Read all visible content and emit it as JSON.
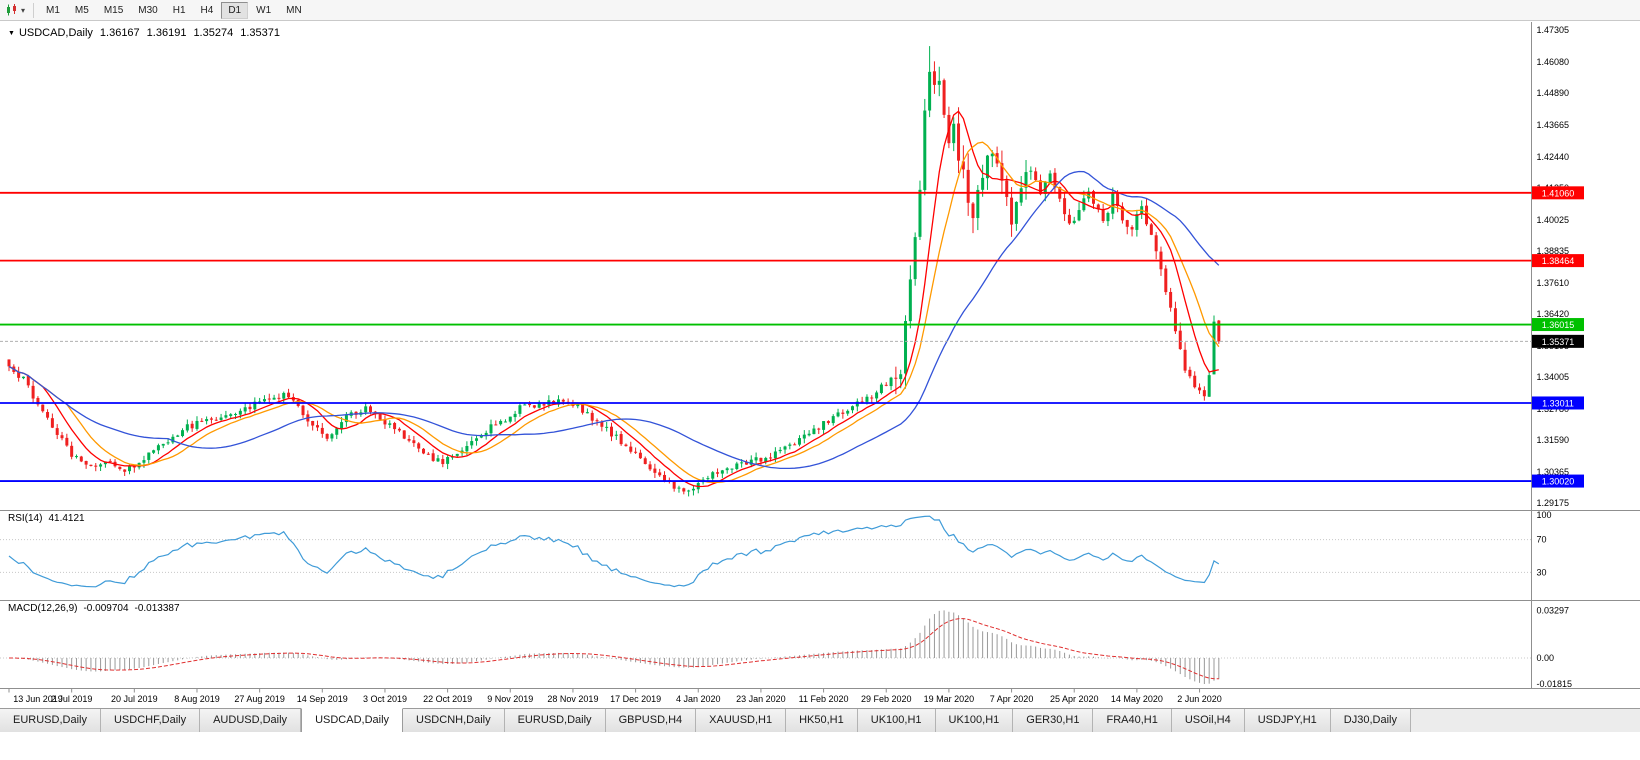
{
  "icons": {
    "title_marker": "▼",
    "toolbar_caret": "▾"
  },
  "toolbar": {
    "timeframes": [
      {
        "label": "M1",
        "active": false
      },
      {
        "label": "M5",
        "active": false
      },
      {
        "label": "M15",
        "active": false
      },
      {
        "label": "M30",
        "active": false
      },
      {
        "label": "H1",
        "active": false
      },
      {
        "label": "H4",
        "active": false
      },
      {
        "label": "D1",
        "active": true
      },
      {
        "label": "W1",
        "active": false
      },
      {
        "label": "MN",
        "active": false
      }
    ]
  },
  "chart_header": {
    "symbol": "USDCAD,Daily",
    "open": "1.36167",
    "high": "1.36191",
    "low": "1.35274",
    "close": "1.35371"
  },
  "price_axis": [
    "1.47305",
    "1.46080",
    "1.44890",
    "1.43665",
    "1.42440",
    "1.41250",
    "1.40025",
    "1.38835",
    "1.37610",
    "1.36420",
    "1.35195",
    "1.34005",
    "1.32780",
    "1.31590",
    "1.30365",
    "1.29175"
  ],
  "chart_data": {
    "type": "candlestick",
    "symbol": "USDCAD",
    "timeframe": "Daily",
    "candle_count": 252,
    "last_candle": {
      "open": 1.36167,
      "high": 1.36191,
      "low": 1.35274,
      "close": 1.35371
    },
    "peak": {
      "index": 191,
      "high": 1.4668
    },
    "trough": {
      "index": 141,
      "low": 1.2949
    },
    "candle_colors": {
      "up": "#00b050",
      "down": "#ef2020"
    },
    "moving_averages": [
      {
        "period": 8,
        "color": "#ff0000"
      },
      {
        "period": 13,
        "color": "#ff9900"
      },
      {
        "period": 34,
        "color": "#3353d8"
      }
    ],
    "horizontal_lines": [
      {
        "price": 1.4106,
        "label": "1.41060",
        "color": "#ff0000"
      },
      {
        "price": 1.38464,
        "label": "1.38464",
        "color": "#ff0000"
      },
      {
        "price": 1.36015,
        "label": "1.36015",
        "color": "#00c000"
      },
      {
        "price": 1.33011,
        "label": "1.33011",
        "color": "#0000ff"
      },
      {
        "price": 1.3002,
        "label": "1.30020",
        "color": "#0000ff"
      }
    ],
    "current_price": {
      "price": 1.35371,
      "label": "1.35371",
      "color": "#000000"
    },
    "price_anchors": [
      [
        0,
        1.343
      ],
      [
        3,
        1.339
      ],
      [
        6,
        1.33
      ],
      [
        9,
        1.3215
      ],
      [
        13,
        1.3105
      ],
      [
        17,
        1.306
      ],
      [
        21,
        1.3075
      ],
      [
        24,
        1.304
      ],
      [
        28,
        1.309
      ],
      [
        32,
        1.315
      ],
      [
        36,
        1.32
      ],
      [
        40,
        1.323
      ],
      [
        45,
        1.3255
      ],
      [
        50,
        1.329
      ],
      [
        54,
        1.332
      ],
      [
        58,
        1.333
      ],
      [
        62,
        1.324
      ],
      [
        66,
        1.317
      ],
      [
        70,
        1.325
      ],
      [
        74,
        1.3285
      ],
      [
        78,
        1.323
      ],
      [
        82,
        1.317
      ],
      [
        86,
        1.3105
      ],
      [
        90,
        1.307
      ],
      [
        94,
        1.313
      ],
      [
        98,
        1.3185
      ],
      [
        102,
        1.323
      ],
      [
        106,
        1.328
      ],
      [
        110,
        1.33
      ],
      [
        114,
        1.331
      ],
      [
        118,
        1.329
      ],
      [
        122,
        1.323
      ],
      [
        126,
        1.317
      ],
      [
        130,
        1.3105
      ],
      [
        134,
        1.304
      ],
      [
        138,
        1.298
      ],
      [
        141,
        1.296
      ],
      [
        144,
        1.3
      ],
      [
        148,
        1.305
      ],
      [
        152,
        1.307
      ],
      [
        156,
        1.3085
      ],
      [
        160,
        1.311
      ],
      [
        164,
        1.316
      ],
      [
        168,
        1.321
      ],
      [
        172,
        1.3255
      ],
      [
        176,
        1.33
      ],
      [
        180,
        1.334
      ],
      [
        183,
        1.34
      ],
      [
        185,
        1.345
      ],
      [
        187,
        1.375
      ],
      [
        188,
        1.395
      ],
      [
        189,
        1.415
      ],
      [
        190,
        1.44
      ],
      [
        191,
        1.46
      ],
      [
        192,
        1.448
      ],
      [
        193,
        1.455
      ],
      [
        194,
        1.442
      ],
      [
        195,
        1.43
      ],
      [
        196,
        1.436
      ],
      [
        197,
        1.425
      ],
      [
        198,
        1.416
      ],
      [
        199,
        1.408
      ],
      [
        200,
        1.402
      ],
      [
        201,
        1.41
      ],
      [
        202,
        1.417
      ],
      [
        203,
        1.423
      ],
      [
        204,
        1.428
      ],
      [
        205,
        1.422
      ],
      [
        206,
        1.415
      ],
      [
        207,
        1.408
      ],
      [
        208,
        1.402
      ],
      [
        209,
        1.409
      ],
      [
        210,
        1.416
      ],
      [
        211,
        1.422
      ],
      [
        212,
        1.418
      ],
      [
        213,
        1.412
      ],
      [
        214,
        1.408
      ],
      [
        215,
        1.413
      ],
      [
        216,
        1.418
      ],
      [
        217,
        1.414
      ],
      [
        218,
        1.409
      ],
      [
        219,
        1.404
      ],
      [
        220,
        1.4
      ],
      [
        221,
        1.399
      ],
      [
        222,
        1.404
      ],
      [
        223,
        1.409
      ],
      [
        224,
        1.412
      ],
      [
        225,
        1.408
      ],
      [
        226,
        1.403
      ],
      [
        227,
        1.399
      ],
      [
        228,
        1.404
      ],
      [
        229,
        1.409
      ],
      [
        230,
        1.406
      ],
      [
        231,
        1.402
      ],
      [
        232,
        1.3985
      ],
      [
        233,
        1.396
      ],
      [
        234,
        1.401
      ],
      [
        235,
        1.406
      ],
      [
        236,
        1.399
      ],
      [
        237,
        1.393
      ],
      [
        238,
        1.387
      ],
      [
        239,
        1.381
      ],
      [
        240,
        1.373
      ],
      [
        241,
        1.365
      ],
      [
        242,
        1.358
      ],
      [
        243,
        1.35
      ],
      [
        244,
        1.343
      ],
      [
        245,
        1.34
      ],
      [
        246,
        1.338
      ],
      [
        247,
        1.336
      ],
      [
        248,
        1.333
      ],
      [
        249,
        1.342
      ],
      [
        250,
        1.3615
      ],
      [
        251,
        1.3537
      ]
    ]
  },
  "rsi_panel": {
    "name": "RSI(14)",
    "value": "41.4121",
    "period": 14,
    "color": "#3f9bd8",
    "axis_labels": [
      "100",
      "70",
      "30"
    ],
    "levels": [
      70,
      30
    ]
  },
  "macd_panel": {
    "name": "MACD(12,26,9)",
    "value_main": "-0.009704",
    "value_signal": "-0.013387",
    "fast": 12,
    "slow": 26,
    "signal": 9,
    "axis_labels": [
      "0.03297",
      "0.00",
      "-0.01815"
    ],
    "histogram_color": "#999999",
    "signal_color": "#e03030"
  },
  "date_axis": [
    "13 Jun 2019",
    "2 Jul 2019",
    "20 Jul 2019",
    "8 Aug 2019",
    "27 Aug 2019",
    "14 Sep 2019",
    "3 Oct 2019",
    "22 Oct 2019",
    "9 Nov 2019",
    "28 Nov 2019",
    "17 Dec 2019",
    "4 Jan 2020",
    "23 Jan 2020",
    "11 Feb 2020",
    "29 Feb 2020",
    "19 Mar 2020",
    "7 Apr 2020",
    "25 Apr 2020",
    "14 May 2020",
    "2 Jun 2020"
  ],
  "tabs": [
    {
      "label": "EURUSD,Daily",
      "active": false
    },
    {
      "label": "USDCHF,Daily",
      "active": false
    },
    {
      "label": "AUDUSD,Daily",
      "active": false
    },
    {
      "label": "USDCAD,Daily",
      "active": true
    },
    {
      "label": "USDCNH,Daily",
      "active": false
    },
    {
      "label": "EURUSD,Daily",
      "active": false
    },
    {
      "label": "GBPUSD,H4",
      "active": false
    },
    {
      "label": "XAUUSD,H1",
      "active": false
    },
    {
      "label": "HK50,H1",
      "active": false
    },
    {
      "label": "UK100,H1",
      "active": false
    },
    {
      "label": "UK100,H1",
      "active": false
    },
    {
      "label": "GER30,H1",
      "active": false
    },
    {
      "label": "FRA40,H1",
      "active": false
    },
    {
      "label": "USOil,H4",
      "active": false
    },
    {
      "label": "USDJPY,H1",
      "active": false
    },
    {
      "label": "DJ30,Daily",
      "active": false
    }
  ]
}
